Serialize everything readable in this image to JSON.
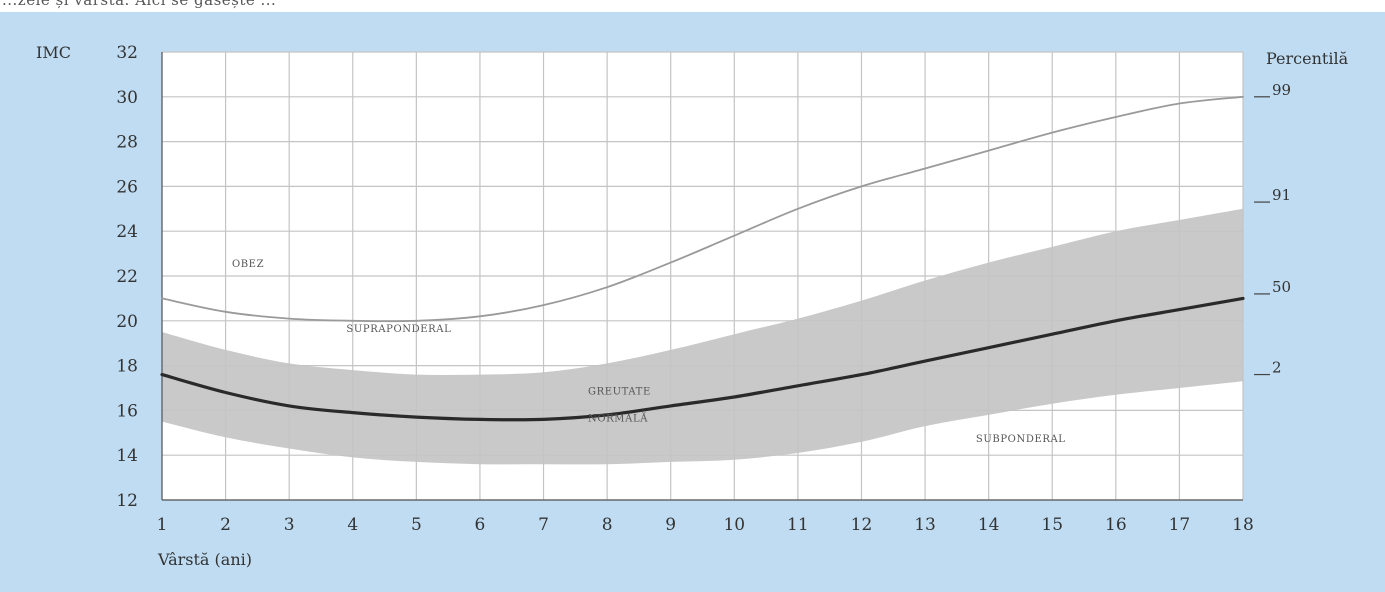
{
  "header_fragment": "...zele și vârstă. Aici se găsește ...",
  "chart_data": {
    "type": "line",
    "ylabel": "IMC",
    "xlabel": "Vârstă (ani)",
    "right_axis_label": "Percentilă",
    "x": [
      1,
      2,
      3,
      4,
      5,
      6,
      7,
      8,
      9,
      10,
      11,
      12,
      13,
      14,
      15,
      16,
      17,
      18
    ],
    "xlim": [
      1,
      18
    ],
    "ylim": [
      12,
      32
    ],
    "yticks": [
      12,
      14,
      16,
      18,
      20,
      22,
      24,
      26,
      28,
      30,
      32
    ],
    "grid": true,
    "series": [
      {
        "name": "99",
        "color": "#9a9a9a",
        "values": [
          21.0,
          20.4,
          20.1,
          20.0,
          20.0,
          20.2,
          20.7,
          21.5,
          22.6,
          23.8,
          25.0,
          26.0,
          26.8,
          27.6,
          28.4,
          29.1,
          29.7,
          30.0
        ]
      },
      {
        "name": "50",
        "color": "#2a2a2a",
        "values": [
          17.6,
          16.8,
          16.2,
          15.9,
          15.7,
          15.6,
          15.6,
          15.8,
          16.2,
          16.6,
          17.1,
          17.6,
          18.2,
          18.8,
          19.4,
          20.0,
          20.5,
          21.0
        ]
      }
    ],
    "band": {
      "color": "#c9c9c9",
      "upper": [
        19.5,
        18.7,
        18.1,
        17.8,
        17.6,
        17.6,
        17.7,
        18.1,
        18.7,
        19.4,
        20.1,
        20.9,
        21.8,
        22.6,
        23.3,
        24.0,
        24.5,
        25.0
      ],
      "lower": [
        15.5,
        14.8,
        14.3,
        13.9,
        13.7,
        13.6,
        13.6,
        13.6,
        13.7,
        13.8,
        14.1,
        14.6,
        15.3,
        15.8,
        16.3,
        16.7,
        17.0,
        17.3
      ]
    },
    "percentile_marks": [
      {
        "label": "99",
        "y": 30.0
      },
      {
        "label": "91",
        "y": 25.3
      },
      {
        "label": "50",
        "y": 21.2
      },
      {
        "label": "2",
        "y": 17.6
      }
    ],
    "annotations": [
      {
        "text": "OBEZ",
        "x": 2.1,
        "y": 22.4
      },
      {
        "text": "SUPRAPONDERAL",
        "x": 3.9,
        "y": 19.5
      },
      {
        "text": "GREUTATE",
        "x": 7.7,
        "y": 16.7
      },
      {
        "text": "NORMALĂ",
        "x": 7.7,
        "y": 15.5
      },
      {
        "text": "SUBPONDERAL",
        "x": 13.8,
        "y": 14.6
      }
    ]
  }
}
